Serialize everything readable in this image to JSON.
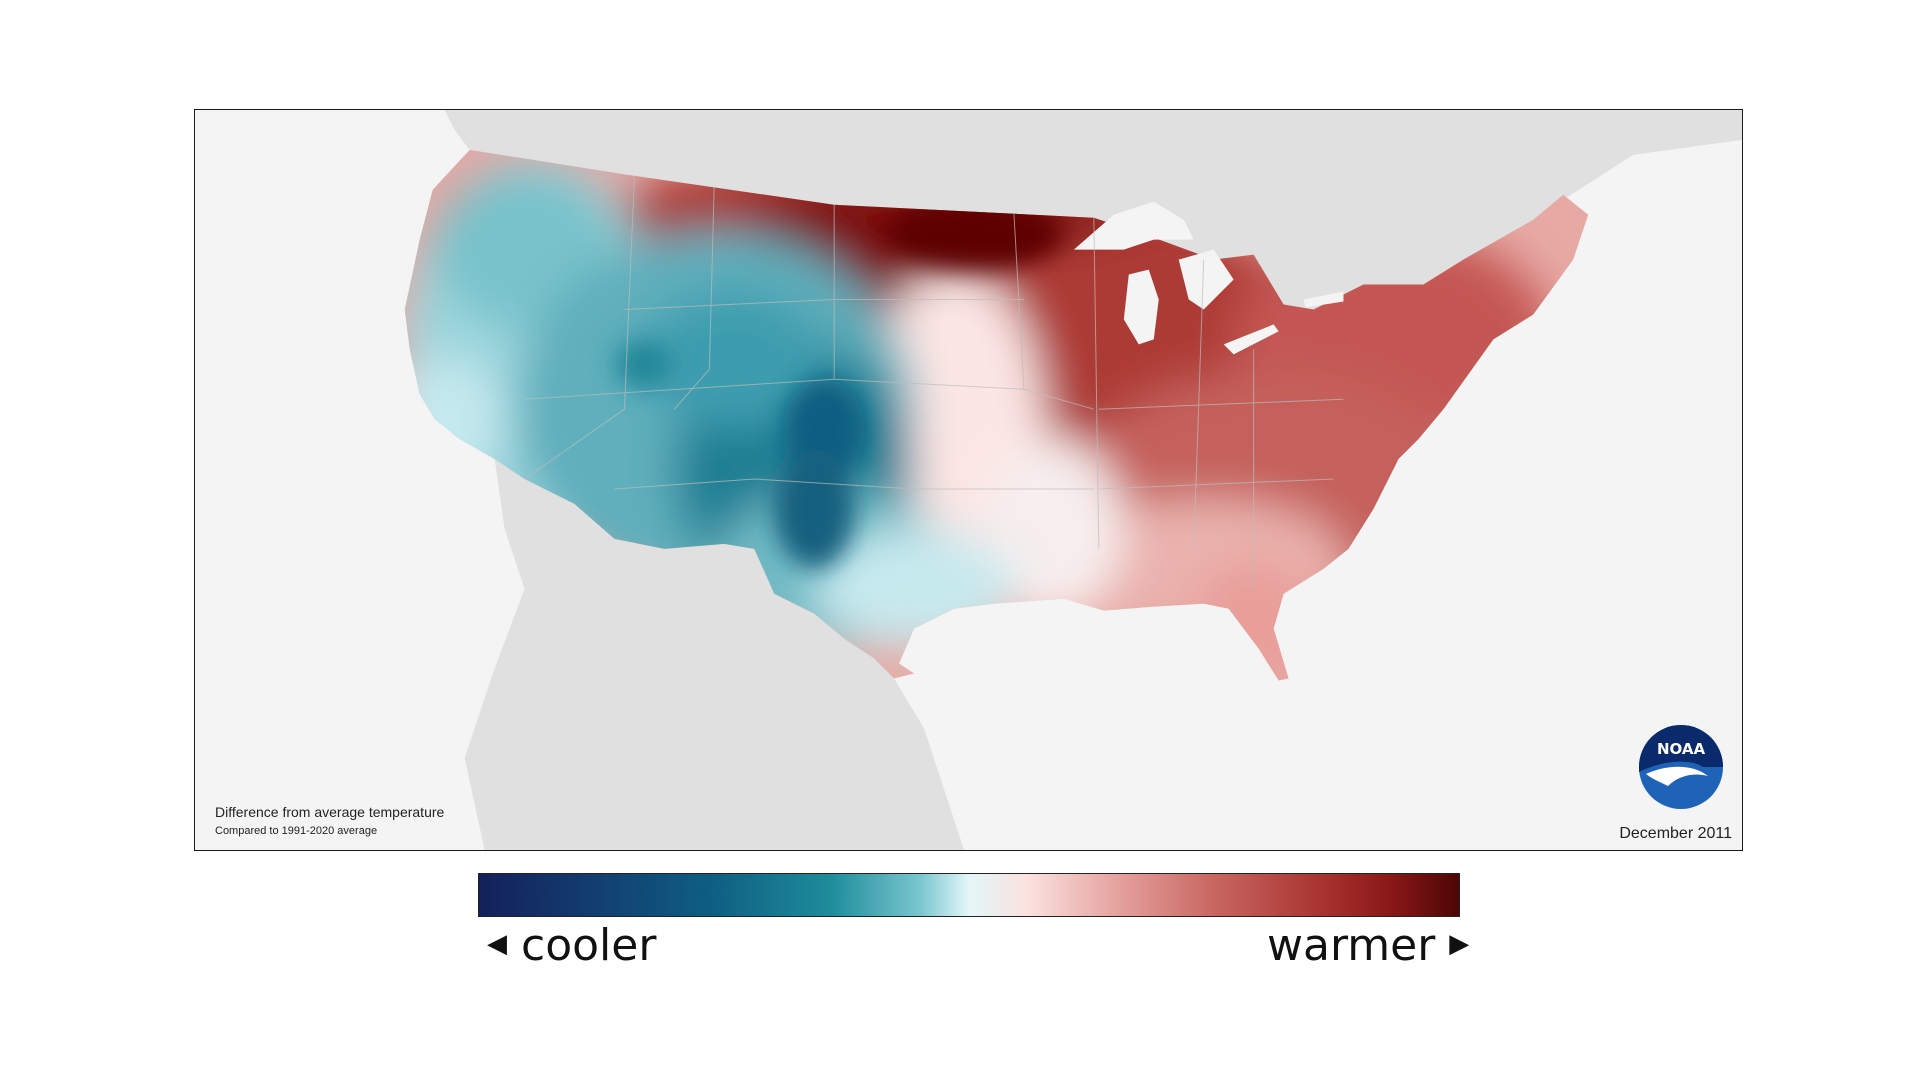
{
  "map": {
    "caption_title": "Difference from average temperature",
    "caption_subtitle": "Compared to 1991-2020 average",
    "date": "December 2011",
    "logo_text": "NOAA"
  },
  "legend": {
    "cool_label": "cooler",
    "warm_label": "warmer",
    "colors": [
      "#14205a",
      "#0e5f82",
      "#1f8d9c",
      "#e4f6f8",
      "#e39c99",
      "#a8332f",
      "#4d0505"
    ]
  },
  "colors": {
    "land_background": "#e0e0e0",
    "water_background": "#f4f4f4",
    "strong_cool": "#0e5f82",
    "strong_warm": "#7a0e0e"
  }
}
